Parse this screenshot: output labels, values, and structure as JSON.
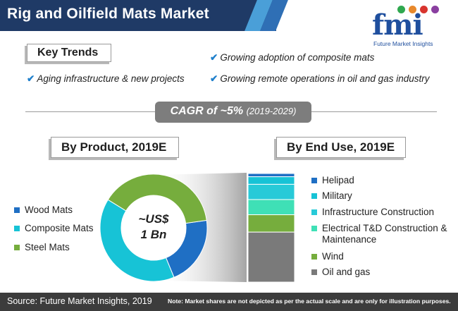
{
  "header": {
    "title": "Rig and Oilfield Mats Market",
    "bar_color": "#1f3a66",
    "stripe_colors": [
      "#4a9fd8",
      "#2f6fb5"
    ]
  },
  "logo": {
    "mark": "fmi",
    "subtitle": "Future Market Insights",
    "color": "#1f4f9e",
    "dot_colors": [
      "#2fa84f",
      "#e8892b",
      "#d8342e",
      "#8a3fa0"
    ]
  },
  "key_trends": {
    "label": "Key Trends",
    "items": [
      "Aging infrastructure & new projects",
      "Growing adoption of composite mats",
      "Growing remote operations in oil and gas industry"
    ],
    "check_icon": "checkmark-icon"
  },
  "cagr": {
    "main": "CAGR of ~5%",
    "years": "(2019-2029)"
  },
  "chart_data": [
    {
      "type": "pie",
      "title": "By Product, 2019E",
      "center_label": [
        "~US$",
        "1 Bn"
      ],
      "categories": [
        "Wood Mats",
        "Composite Mats",
        "Steel Mats"
      ],
      "values": [
        21,
        40,
        39
      ],
      "colors": [
        "#1f6fc4",
        "#17c3d6",
        "#76ad3d"
      ],
      "legend": "left"
    },
    {
      "type": "bar",
      "stacked": true,
      "title": "By End Use, 2019E",
      "categories": [
        "Helipad",
        "Military",
        "Infrastructure Construction",
        "Electrical T&D Construction & Maintenance",
        "Wind",
        "Oil and gas"
      ],
      "values": [
        3,
        7,
        14,
        14,
        16,
        46
      ],
      "colors": [
        "#1f6fc4",
        "#17c3d6",
        "#28cad8",
        "#3fe0b6",
        "#76ad3d",
        "#7a7a7a"
      ],
      "legend": "right"
    }
  ],
  "footer": {
    "source": "Source: Future Market Insights, 2019",
    "note": "Note: Market shares are not depicted as per the actual scale and are only for illustration purposes."
  }
}
